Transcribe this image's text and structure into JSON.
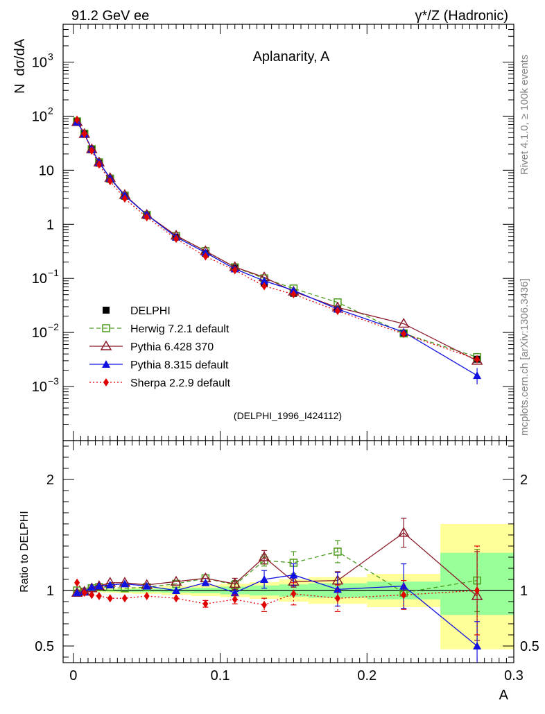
{
  "header": {
    "left": "91.2 GeV ee",
    "right": "γ*/Z (Hadronic)"
  },
  "side_labels": {
    "rivet": "Rivet 4.1.0, ≥ 100k events",
    "mcplots": "mcplots.cern.ch [arXiv:1306.3436]"
  },
  "chart_data": [
    {
      "type": "line",
      "title": "Aplanarity, A",
      "ylabel": "N  dσ/dA",
      "xlabel": "A",
      "yscale": "log",
      "xlim": [
        -0.007,
        0.3
      ],
      "ylim": [
        0.0001,
        5000
      ],
      "yticks": [
        {
          "v": 0.001,
          "base": "10",
          "exp": "−3"
        },
        {
          "v": 0.01,
          "base": "10",
          "exp": "−2"
        },
        {
          "v": 0.1,
          "base": "10",
          "exp": "−1"
        },
        {
          "v": 1,
          "base": "1",
          "exp": ""
        },
        {
          "v": 10,
          "base": "10",
          "exp": ""
        },
        {
          "v": 100,
          "base": "10",
          "exp": "2"
        },
        {
          "v": 1000,
          "base": "10",
          "exp": "3"
        }
      ],
      "watermark": "(DELPHI_1996_I424112)",
      "x": [
        0.0025,
        0.0075,
        0.0125,
        0.0175,
        0.025,
        0.035,
        0.05,
        0.07,
        0.09,
        0.11,
        0.13,
        0.15,
        0.18,
        0.225,
        0.275
      ],
      "series": [
        {
          "name": "DELPHI",
          "color": "#000000",
          "values": [
            80,
            48,
            24,
            13.5,
            6.8,
            3.3,
            1.45,
            0.58,
            0.29,
            0.155,
            0.082,
            0.053,
            0.027,
            0.0098,
            0.0032
          ]
        },
        {
          "name": "Herwig 7.2.1 default",
          "color": "#4a9a1c",
          "values": [
            80,
            47.5,
            24.5,
            14,
            7,
            3.4,
            1.5,
            0.61,
            0.32,
            0.16,
            0.1,
            0.065,
            0.036,
            0.0096,
            0.0035
          ]
        },
        {
          "name": "Pythia 6.428 370",
          "color": "#8b1a2a",
          "values": [
            78,
            47,
            24.5,
            14,
            7.2,
            3.5,
            1.5,
            0.62,
            0.32,
            0.162,
            0.105,
            0.057,
            0.029,
            0.0145,
            0.003
          ]
        },
        {
          "name": "Pythia 8.315 default",
          "color": "#1010e0",
          "values": [
            78,
            47,
            24.5,
            14,
            7.1,
            3.4,
            1.5,
            0.58,
            0.3,
            0.15,
            0.09,
            0.06,
            0.027,
            0.0102,
            0.0016
          ]
        },
        {
          "name": "Sherpa 2.2.9 default",
          "color": "#e00000",
          "values": [
            86,
            47,
            23,
            12.8,
            6.3,
            3.0,
            1.35,
            0.54,
            0.255,
            0.142,
            0.072,
            0.051,
            0.025,
            0.0094,
            0.0032
          ]
        }
      ]
    },
    {
      "type": "line",
      "ylabel": "Ratio to DELPHI",
      "xlabel": "A",
      "ylim": [
        0.35,
        2.35
      ],
      "yticks": [
        0.5,
        1,
        2
      ],
      "xticks": [
        "0",
        "0.1",
        "0.2",
        "0.3"
      ],
      "x": [
        0.0025,
        0.0075,
        0.0125,
        0.0175,
        0.025,
        0.035,
        0.05,
        0.07,
        0.09,
        0.11,
        0.13,
        0.15,
        0.18,
        0.225,
        0.275
      ],
      "bands": [
        {
          "x0": 0,
          "x1": 0.005,
          "y": [
            0.985,
            1.015
          ],
          "g": [
            0.992,
            1.008
          ]
        },
        {
          "x0": 0.005,
          "x1": 0.01,
          "y": [
            0.985,
            1.015
          ],
          "g": [
            0.992,
            1.008
          ]
        },
        {
          "x0": 0.01,
          "x1": 0.015,
          "y": [
            0.985,
            1.015
          ],
          "g": [
            0.992,
            1.008
          ]
        },
        {
          "x0": 0.015,
          "x1": 0.02,
          "y": [
            0.985,
            1.015
          ],
          "g": [
            0.992,
            1.008
          ]
        },
        {
          "x0": 0.02,
          "x1": 0.03,
          "y": [
            0.98,
            1.02
          ],
          "g": [
            0.99,
            1.01
          ]
        },
        {
          "x0": 0.03,
          "x1": 0.04,
          "y": [
            0.975,
            1.025
          ],
          "g": [
            0.988,
            1.012
          ]
        },
        {
          "x0": 0.04,
          "x1": 0.06,
          "y": [
            0.97,
            1.03
          ],
          "g": [
            0.985,
            1.015
          ]
        },
        {
          "x0": 0.06,
          "x1": 0.08,
          "y": [
            0.96,
            1.04
          ],
          "g": [
            0.98,
            1.02
          ]
        },
        {
          "x0": 0.08,
          "x1": 0.1,
          "y": [
            0.95,
            1.05
          ],
          "g": [
            0.975,
            1.025
          ]
        },
        {
          "x0": 0.1,
          "x1": 0.12,
          "y": [
            0.94,
            1.06
          ],
          "g": [
            0.965,
            1.035
          ]
        },
        {
          "x0": 0.12,
          "x1": 0.14,
          "y": [
            0.925,
            1.075
          ],
          "g": [
            0.955,
            1.045
          ]
        },
        {
          "x0": 0.14,
          "x1": 0.16,
          "y": [
            0.9,
            1.1
          ],
          "g": [
            0.945,
            1.055
          ]
        },
        {
          "x0": 0.16,
          "x1": 0.2,
          "y": [
            0.88,
            1.12
          ],
          "g": [
            0.935,
            1.065
          ]
        },
        {
          "x0": 0.2,
          "x1": 0.25,
          "y": [
            0.85,
            1.15
          ],
          "g": [
            0.92,
            1.08
          ]
        },
        {
          "x0": 0.25,
          "x1": 0.3,
          "y": [
            0.47,
            1.6
          ],
          "g": [
            0.78,
            1.34
          ]
        }
      ],
      "series": [
        {
          "name": "Herwig 7.2.1 default",
          "values": [
            1.0,
            0.99,
            1.02,
            1.03,
            1.03,
            1.02,
            1.03,
            1.06,
            1.11,
            1.05,
            1.27,
            1.25,
            1.35,
            0.98,
            1.09
          ]
        },
        {
          "name": "Pythia 6.428 370",
          "values": [
            0.98,
            0.99,
            1.02,
            1.04,
            1.07,
            1.07,
            1.05,
            1.08,
            1.11,
            1.06,
            1.3,
            1.08,
            1.09,
            1.52,
            0.95
          ]
        },
        {
          "name": "Pythia 8.315 default",
          "values": [
            0.98,
            0.99,
            1.03,
            1.04,
            1.05,
            1.06,
            1.04,
            1.0,
            1.07,
            0.98,
            1.1,
            1.14,
            1.01,
            1.04,
            0.5
          ]
        },
        {
          "name": "Sherpa 2.2.9 default",
          "values": [
            1.07,
            0.98,
            0.96,
            0.95,
            0.93,
            0.93,
            0.95,
            0.93,
            0.88,
            0.92,
            0.87,
            0.97,
            0.93,
            0.96,
            1.0
          ]
        }
      ]
    }
  ]
}
